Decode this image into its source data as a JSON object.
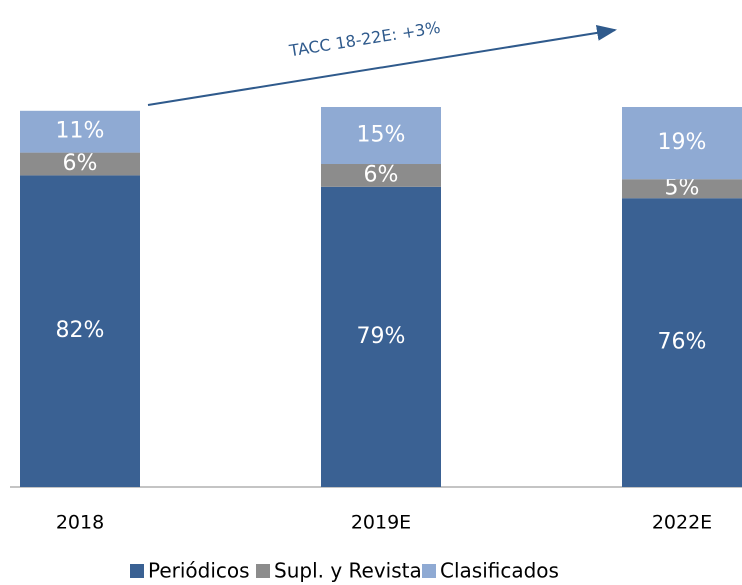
{
  "chart_data": {
    "type": "stacked_bar",
    "annotation": "TACC 18-22E: +3%",
    "categories": [
      "2018",
      "2019E",
      "2022E"
    ],
    "series": [
      {
        "name": "Periódicos",
        "color": "#3a6193",
        "values": [
          82,
          79,
          76
        ],
        "value_labels": [
          "82%",
          "79%",
          "76%"
        ]
      },
      {
        "name": "Supl. y Revistas",
        "color": "#8c8c8c",
        "values": [
          6,
          6,
          5
        ],
        "value_labels": [
          "6%",
          "6%",
          "5%"
        ]
      },
      {
        "name": "Clasificados",
        "color": "#8faad3",
        "values": [
          11,
          15,
          19
        ],
        "value_labels": [
          "11%",
          "15%",
          "19%"
        ]
      }
    ],
    "legend": "bottom"
  }
}
